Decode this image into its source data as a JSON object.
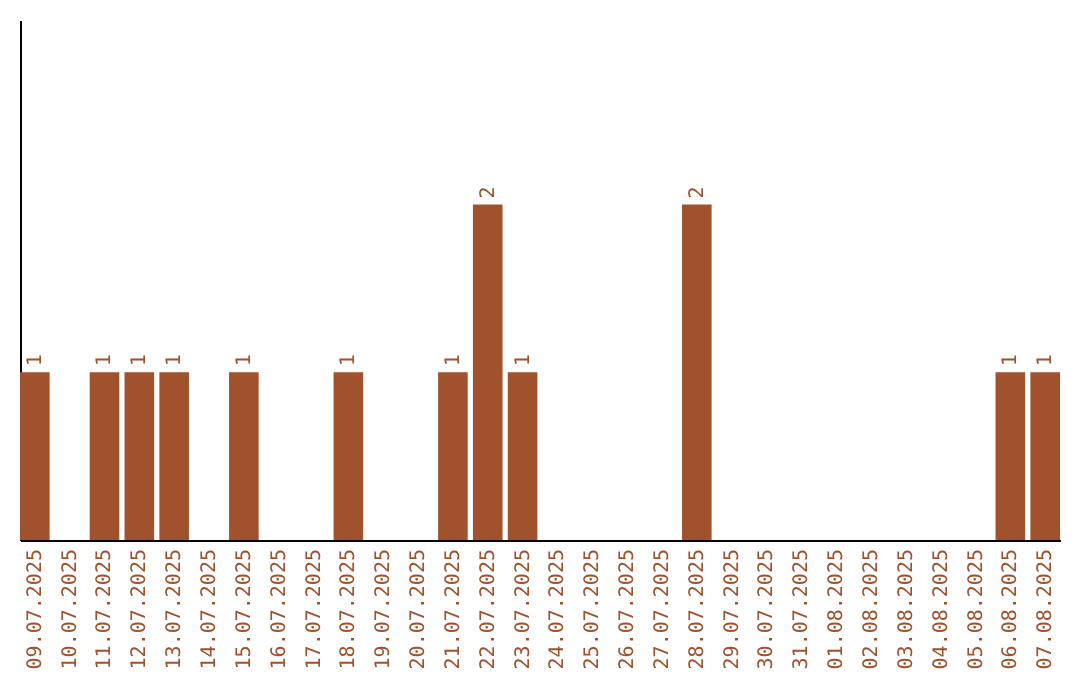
{
  "chart_data": {
    "type": "bar",
    "categories": [
      "09.07.2025",
      "10.07.2025",
      "11.07.2025",
      "12.07.2025",
      "13.07.2025",
      "14.07.2025",
      "15.07.2025",
      "16.07.2025",
      "17.07.2025",
      "18.07.2025",
      "19.07.2025",
      "20.07.2025",
      "21.07.2025",
      "22.07.2025",
      "23.07.2025",
      "24.07.2025",
      "25.07.2025",
      "26.07.2025",
      "27.07.2025",
      "28.07.2025",
      "29.07.2025",
      "30.07.2025",
      "31.07.2025",
      "01.08.2025",
      "02.08.2025",
      "03.08.2025",
      "04.08.2025",
      "05.08.2025",
      "06.08.2025",
      "07.08.2025"
    ],
    "values": [
      1,
      0,
      1,
      1,
      1,
      0,
      1,
      0,
      0,
      1,
      0,
      0,
      1,
      2,
      1,
      0,
      0,
      0,
      0,
      2,
      0,
      0,
      0,
      0,
      0,
      0,
      0,
      0,
      1,
      1
    ],
    "value_labels": [
      "1",
      null,
      "1",
      "1",
      "1",
      null,
      "1",
      null,
      null,
      "1",
      null,
      null,
      "1",
      "2",
      "1",
      null,
      null,
      null,
      null,
      "2",
      null,
      null,
      null,
      null,
      null,
      null,
      null,
      null,
      "1",
      "1"
    ],
    "color": "#a0522d",
    "ylim": [
      0,
      3.1
    ],
    "grid": false
  }
}
